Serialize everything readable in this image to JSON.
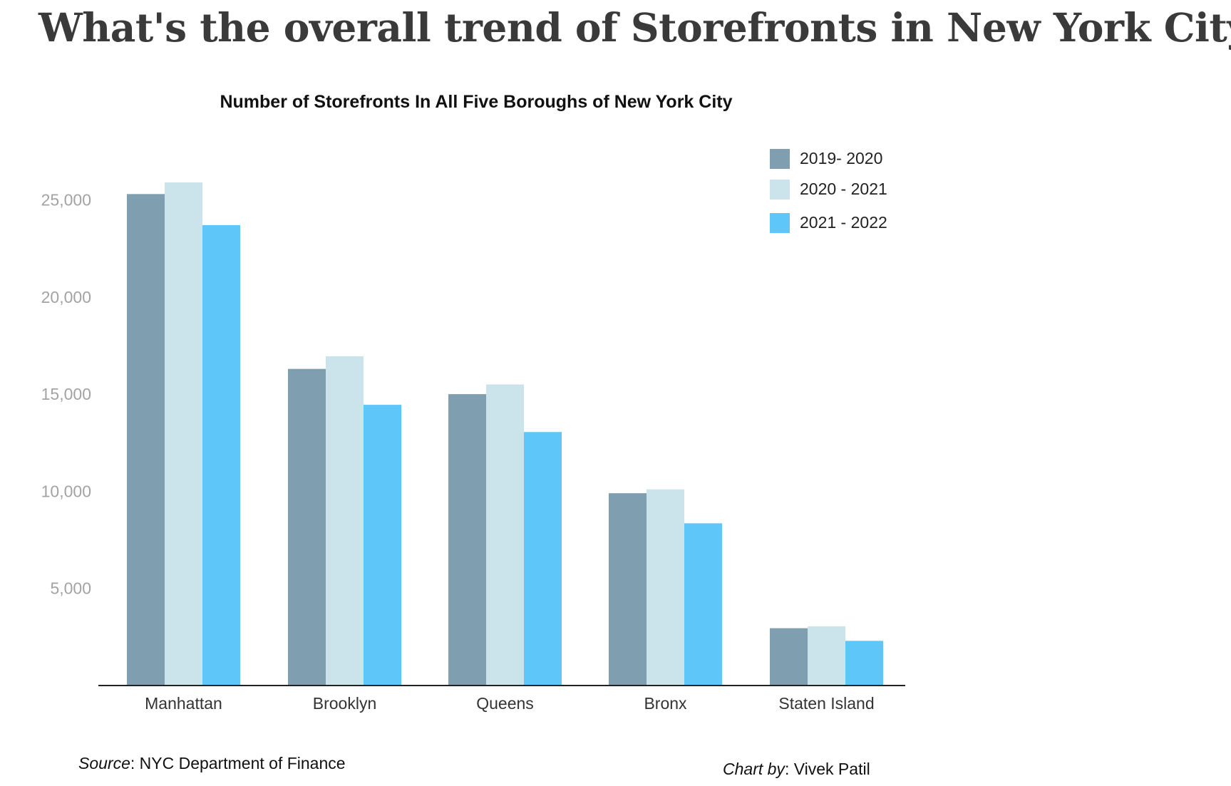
{
  "page": {
    "headline": "What's the overall trend of Storefronts in New York City?",
    "source_label": "Source",
    "source_text": ": NYC Department of Finance",
    "credit_label": "Chart by",
    "credit_text": ": Vivek Patil"
  },
  "chart_data": {
    "type": "bar",
    "title": "Number of Storefronts In All Five Boroughs of New York City",
    "xlabel": "",
    "ylabel": "",
    "categories": [
      "Manhattan",
      "Brooklyn",
      "Queens",
      "Bronx",
      "Staten Island"
    ],
    "series": [
      {
        "name": "2019- 2020",
        "color": "#7f9fb0",
        "values": [
          25300,
          16300,
          15000,
          9900,
          2950
        ]
      },
      {
        "name": "2020 - 2021",
        "color": "#cbe4ec",
        "values": [
          25900,
          16950,
          15500,
          10100,
          3050
        ]
      },
      {
        "name": "2021 - 2022",
        "color": "#5ec6f9",
        "values": [
          23700,
          14450,
          13050,
          8350,
          2300
        ]
      }
    ],
    "ylim": [
      0,
      26000
    ],
    "yticks": [
      5000,
      10000,
      15000,
      20000,
      25000
    ],
    "ytick_labels": [
      "5,000",
      "10,000",
      "15,000",
      "20,000",
      "25,000"
    ],
    "grid": false,
    "legend_position": "top-right"
  }
}
